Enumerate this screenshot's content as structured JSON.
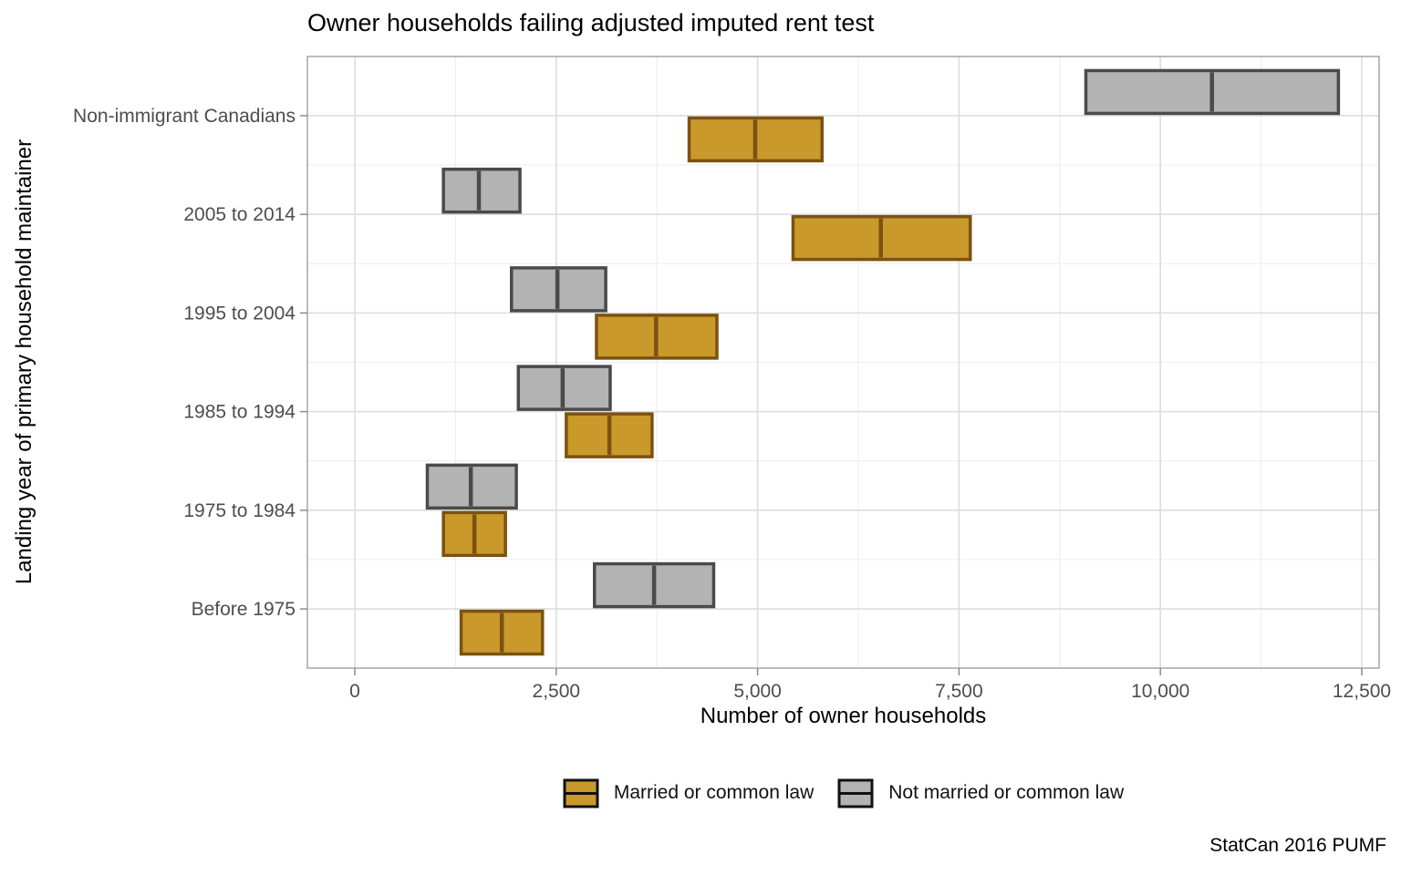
{
  "chart_data": {
    "type": "crossbar",
    "title": "Owner households failing adjusted imputed rent test",
    "xlabel": "Number of owner households",
    "ylabel": "Landing year of primary household maintainer",
    "caption": "StatCan 2016 PUMF",
    "categories": [
      "Non-immigrant Canadians",
      "2005 to 2014",
      "1995 to 2004",
      "1985 to 1994",
      "1975 to 1984",
      "Before 1975"
    ],
    "x_ticks": [
      {
        "v": 0,
        "label": "0"
      },
      {
        "v": 2500,
        "label": "2,500"
      },
      {
        "v": 5000,
        "label": "5,000"
      },
      {
        "v": 7500,
        "label": "7,500"
      },
      {
        "v": 10000,
        "label": "10,000"
      },
      {
        "v": 12500,
        "label": "12,500"
      }
    ],
    "x_minor": [
      1250,
      3750,
      6250,
      8750,
      11250
    ],
    "xlim": [
      -588.8,
      12715.2
    ],
    "legend_position": "bottom",
    "grid": true,
    "series": [
      {
        "name": "Married or common law",
        "fill": "#C9992B",
        "stroke": "#7C5211",
        "dodge": 1,
        "values": [
          [
            4150,
            4970,
            5800
          ],
          [
            5440,
            6530,
            7640
          ],
          [
            3000,
            3740,
            4495
          ],
          [
            2625,
            3160,
            3690
          ],
          [
            1100,
            1485,
            1870
          ],
          [
            1320,
            1825,
            2330
          ]
        ]
      },
      {
        "name": "Not married or common law",
        "fill": "#B3B3B3",
        "stroke": "#4A4A4A",
        "dodge": -1,
        "values": [
          [
            9075,
            10640,
            12210
          ],
          [
            1100,
            1540,
            2050
          ],
          [
            1945,
            2515,
            3115
          ],
          [
            2030,
            2580,
            3170
          ],
          [
            900,
            1440,
            2005
          ],
          [
            2975,
            3715,
            4455
          ]
        ]
      }
    ]
  }
}
